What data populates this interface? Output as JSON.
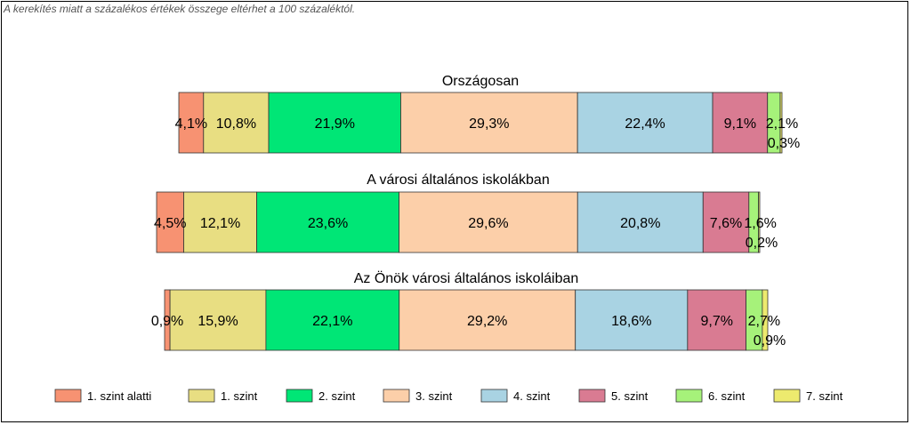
{
  "footnote": "A kerekítés miatt a százalékos értékek összege eltérhet a 100 százaléktól.",
  "chart_data": {
    "type": "bar",
    "orientation": "horizontal",
    "stacked": "percent",
    "legend_position": "bottom",
    "grid": false,
    "legend": [
      "1. szint alatti",
      "1. szint",
      "2. szint",
      "3. szint",
      "4. szint",
      "5. szint",
      "6. szint",
      "7. szint"
    ],
    "colors": [
      "#F79272",
      "#E8DE82",
      "#00E676",
      "#FCCFA9",
      "#A9D3E3",
      "#D97B92",
      "#A6F27A",
      "#EDEA6E"
    ],
    "groups": [
      {
        "title": "Országosan",
        "values": [
          4.1,
          10.8,
          21.9,
          29.3,
          22.4,
          9.1,
          2.1,
          0.3
        ],
        "labels": [
          "4,1%",
          "10,8%",
          "21,9%",
          "29,3%",
          "22,4%",
          "9,1%",
          "2,1%",
          "0,3%"
        ]
      },
      {
        "title": "A városi általános iskolákban",
        "values": [
          4.5,
          12.1,
          23.6,
          29.6,
          20.8,
          7.6,
          1.6,
          0.2
        ],
        "labels": [
          "4,5%",
          "12,1%",
          "23,6%",
          "29,6%",
          "20,8%",
          "7,6%",
          "1,6%",
          "0,2%"
        ]
      },
      {
        "title": "Az Önök városi általános iskoláiban",
        "values": [
          0.9,
          15.9,
          22.1,
          29.2,
          18.6,
          9.7,
          2.7,
          0.9
        ],
        "labels": [
          "0,9%",
          "15,9%",
          "22,1%",
          "29,2%",
          "18,6%",
          "9,7%",
          "2,7%",
          "0,9%"
        ]
      }
    ]
  }
}
